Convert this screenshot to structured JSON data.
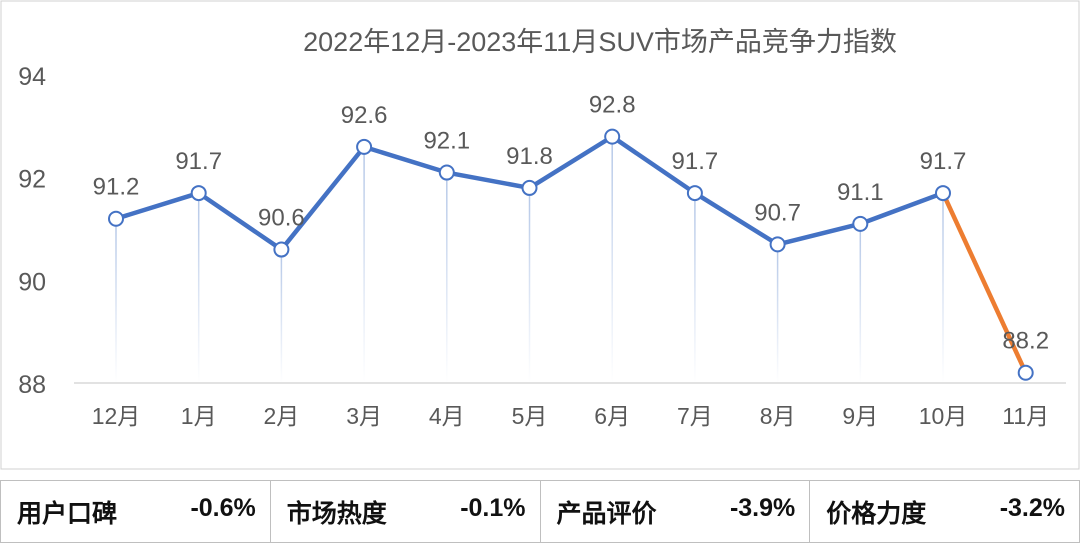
{
  "chart_data": {
    "type": "line",
    "title": "2022年12月-2023年11月SUV市场产品竞争力指数",
    "categories": [
      "12月",
      "1月",
      "2月",
      "3月",
      "4月",
      "5月",
      "6月",
      "7月",
      "8月",
      "9月",
      "10月",
      "11月"
    ],
    "values": [
      91.2,
      91.7,
      90.6,
      92.6,
      92.1,
      91.8,
      92.8,
      91.7,
      90.7,
      91.1,
      91.7,
      88.2
    ],
    "data_labels": [
      "91.2",
      "91.7",
      "90.6",
      "92.6",
      "92.1",
      "91.8",
      "92.8",
      "91.7",
      "90.7",
      "91.1",
      "91.7",
      "88.2"
    ],
    "ylim": [
      88,
      94
    ],
    "yticks": [
      "88",
      "90",
      "92",
      "94"
    ],
    "xlabel": "",
    "ylabel": "",
    "grid": false,
    "drop_lines": true,
    "line_color": "#4472c4",
    "highlight_last_segment_color": "#ed7d31"
  },
  "stats": [
    {
      "label": "用户口碑",
      "value": "-0.6%"
    },
    {
      "label": "市场热度",
      "value": "-0.1%"
    },
    {
      "label": "产品评价",
      "value": "-3.9%"
    },
    {
      "label": "价格力度",
      "value": "-3.2%"
    }
  ]
}
